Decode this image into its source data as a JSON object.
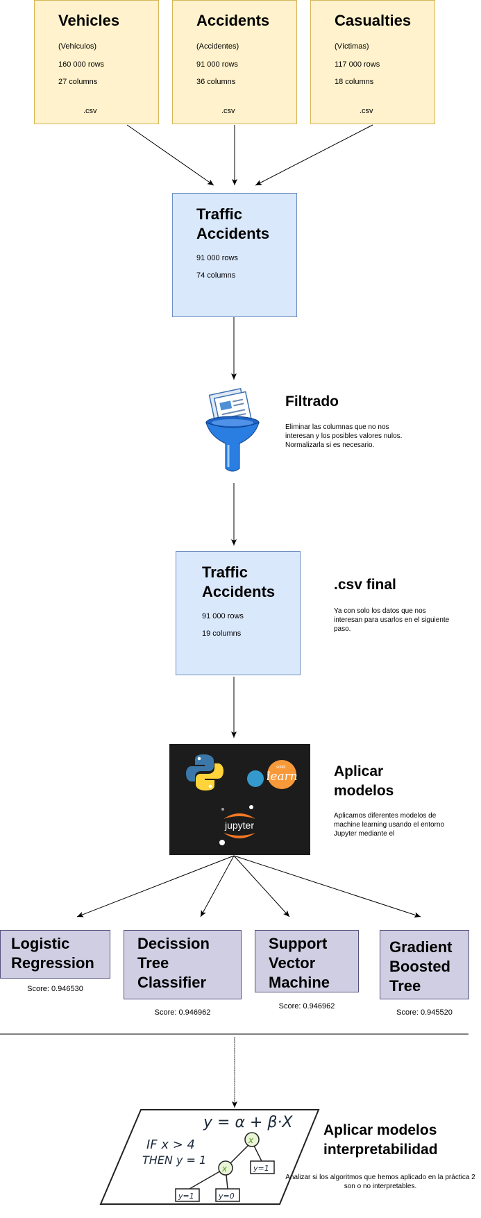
{
  "sources": [
    {
      "title": "Vehicles",
      "subtitle": "(Vehículos)",
      "rows": "160 000 rows",
      "cols": "27 columns",
      "ext": ".csv"
    },
    {
      "title": "Accidents",
      "subtitle": "(Accidentes)",
      "rows": "91 000 rows",
      "cols": "36 columns",
      "ext": ".csv"
    },
    {
      "title": "Casualties",
      "subtitle": "(Víctimas)",
      "rows": "117 000 rows",
      "cols": "18 columns",
      "ext": ".csv"
    }
  ],
  "merged": {
    "title_line1": "Traffic",
    "title_line2": "Accidents",
    "rows": "91 000 rows",
    "cols": "74 columns"
  },
  "filter": {
    "title": "Filtrado",
    "desc": "Eliminar las columnas que no nos interesan y los posibles valores nulos. Normalizarla si es necesario."
  },
  "final": {
    "title_line1": "Traffic",
    "title_line2": "Accidents",
    "rows": "91 000 rows",
    "cols": "19 columns"
  },
  "final_note": {
    "title": ".csv final",
    "desc": "Ya con solo los datos que nos interesan para usarlos en el siguiente paso."
  },
  "apply": {
    "title_line1": "Aplicar",
    "title_line2": "modelos",
    "desc": "Aplicamos diferentes modelos de machine learning usando el entorno Jupyter mediante el"
  },
  "logos": {
    "sklearn_small": "scikit",
    "sklearn_big": "learn",
    "jupyter": "jupyter"
  },
  "models": [
    {
      "lines": [
        "Logistic",
        "Regression"
      ],
      "score": "Score: 0.946530"
    },
    {
      "lines": [
        "Decission",
        "Tree",
        "Classifier"
      ],
      "score": "Score: 0.946962"
    },
    {
      "lines": [
        "Support",
        "Vector",
        "Machine"
      ],
      "score": "Score: 0.946962"
    },
    {
      "lines": [
        "Gradient",
        "Boosted",
        "Tree"
      ],
      "score": "Score: 0.945520"
    }
  ],
  "interp": {
    "title_line1": "Aplicar modelos",
    "title_line2": "interpretabilidad",
    "desc": "Analizar si los algoritmos que hemos aplicado en la práctica 2 son o no interpretables."
  },
  "sketch": {
    "formula": "y = α + β·X",
    "rule_line1": "IF x > 4",
    "rule_line2": "THEN y = 1",
    "leaf_a": "y=1",
    "leaf_b": "y=1",
    "leaf_c": "y=0",
    "node": "x"
  }
}
